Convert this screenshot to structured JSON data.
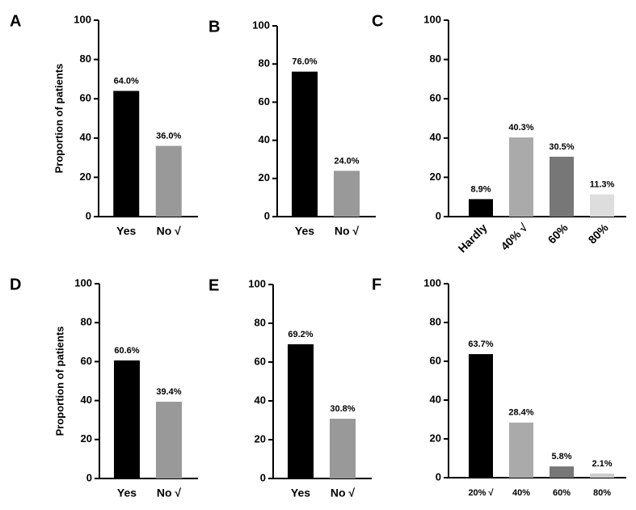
{
  "chart_data": [
    {
      "type": "bar",
      "title": "A",
      "ylabel": "Proportion of patients",
      "categories": [
        "Yes",
        "No √"
      ],
      "values": [
        64.0,
        36.0
      ],
      "value_labels": [
        "64.0%",
        "36.0%"
      ],
      "colors": [
        "#000000",
        "#999999"
      ],
      "ylim": [
        0,
        100
      ],
      "yticks": [
        0,
        20,
        40,
        60,
        80,
        100
      ]
    },
    {
      "type": "bar",
      "title": "B",
      "categories": [
        "Yes",
        "No √"
      ],
      "values": [
        76.0,
        24.0
      ],
      "value_labels": [
        "76.0%",
        "24.0%"
      ],
      "colors": [
        "#000000",
        "#999999"
      ],
      "ylim": [
        0,
        100
      ],
      "yticks": [
        0,
        20,
        40,
        60,
        80,
        100
      ]
    },
    {
      "type": "bar",
      "title": "C",
      "categories": [
        "Hardly",
        "40% √",
        "60%",
        "80%"
      ],
      "values": [
        8.9,
        40.3,
        30.5,
        11.3
      ],
      "value_labels": [
        "8.9%",
        "40.3%",
        "30.5%",
        "11.3%"
      ],
      "colors": [
        "#000000",
        "#aaaaaa",
        "#777777",
        "#dddddd"
      ],
      "ylim": [
        0,
        100
      ],
      "yticks": [
        0,
        20,
        40,
        60,
        80,
        100
      ]
    },
    {
      "type": "bar",
      "title": "D",
      "ylabel": "Proportion of patients",
      "categories": [
        "Yes",
        "No √"
      ],
      "values": [
        60.6,
        39.4
      ],
      "value_labels": [
        "60.6%",
        "39.4%"
      ],
      "colors": [
        "#000000",
        "#999999"
      ],
      "ylim": [
        0,
        100
      ],
      "yticks": [
        0,
        20,
        40,
        60,
        80,
        100
      ]
    },
    {
      "type": "bar",
      "title": "E",
      "categories": [
        "Yes",
        "No √"
      ],
      "values": [
        69.2,
        30.8
      ],
      "value_labels": [
        "69.2%",
        "30.8%"
      ],
      "colors": [
        "#000000",
        "#999999"
      ],
      "ylim": [
        0,
        100
      ],
      "yticks": [
        0,
        20,
        40,
        60,
        80,
        100
      ]
    },
    {
      "type": "bar",
      "title": "F",
      "categories": [
        "20% √",
        "40%",
        "60%",
        "80%"
      ],
      "values": [
        63.7,
        28.4,
        5.8,
        2.1
      ],
      "value_labels": [
        "63.7%",
        "28.4%",
        "5.8%",
        "2.1%"
      ],
      "colors": [
        "#000000",
        "#aaaaaa",
        "#777777",
        "#cccccc"
      ],
      "ylim": [
        0,
        100
      ],
      "yticks": [
        0,
        20,
        40,
        60,
        80,
        100
      ]
    }
  ]
}
